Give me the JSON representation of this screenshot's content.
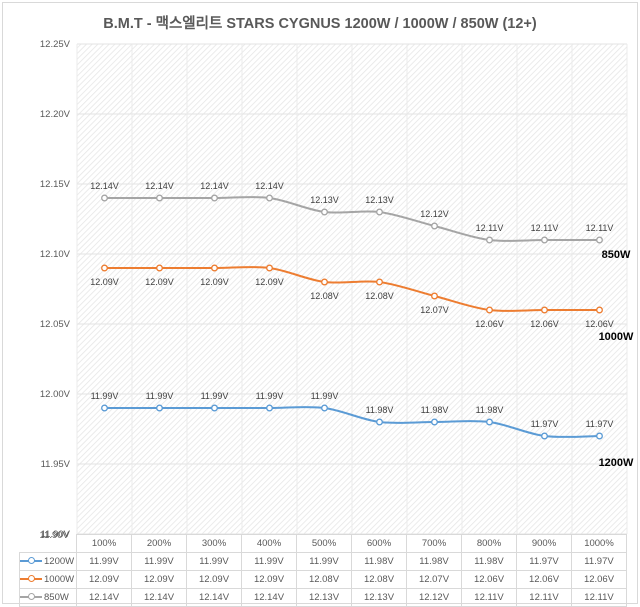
{
  "chart_data": {
    "type": "line",
    "title": "B.M.T - 맥스엘리트 STARS CYGNUS 1200W / 1000W / 850W (12+)",
    "xlabel": "",
    "ylabel": "",
    "categories": [
      "100%",
      "200%",
      "300%",
      "400%",
      "500%",
      "600%",
      "700%",
      "800%",
      "900%",
      "1000%"
    ],
    "ylim": [
      11.9,
      12.25
    ],
    "yticks": [
      "12.25V",
      "12.20V",
      "12.15V",
      "12.10V",
      "12.05V",
      "12.00V",
      "11.95V",
      "11.90V"
    ],
    "ytick_values": [
      12.25,
      12.2,
      12.15,
      12.1,
      12.05,
      12.0,
      11.95,
      11.9
    ],
    "grid": true,
    "legend": "data-table-bottom",
    "series": [
      {
        "name": "1200W",
        "color": "#5b9bd5",
        "values": [
          11.99,
          11.99,
          11.99,
          11.99,
          11.99,
          11.98,
          11.98,
          11.98,
          11.97,
          11.97
        ],
        "labels": [
          "11.99V",
          "11.99V",
          "11.99V",
          "11.99V",
          "11.99V",
          "11.98V",
          "11.98V",
          "11.98V",
          "11.97V",
          "11.97V"
        ]
      },
      {
        "name": "1000W",
        "color": "#ed7d31",
        "values": [
          12.09,
          12.09,
          12.09,
          12.09,
          12.08,
          12.08,
          12.07,
          12.06,
          12.06,
          12.06
        ],
        "labels": [
          "12.09V",
          "12.09V",
          "12.09V",
          "12.09V",
          "12.08V",
          "12.08V",
          "12.07V",
          "12.06V",
          "12.06V",
          "12.06V"
        ]
      },
      {
        "name": "850W",
        "color": "#a5a5a5",
        "values": [
          12.14,
          12.14,
          12.14,
          12.14,
          12.13,
          12.13,
          12.12,
          12.11,
          12.11,
          12.11
        ],
        "labels": [
          "12.14V",
          "12.14V",
          "12.14V",
          "12.14V",
          "12.13V",
          "12.13V",
          "12.12V",
          "12.11V",
          "12.11V",
          "12.11V"
        ]
      }
    ]
  }
}
